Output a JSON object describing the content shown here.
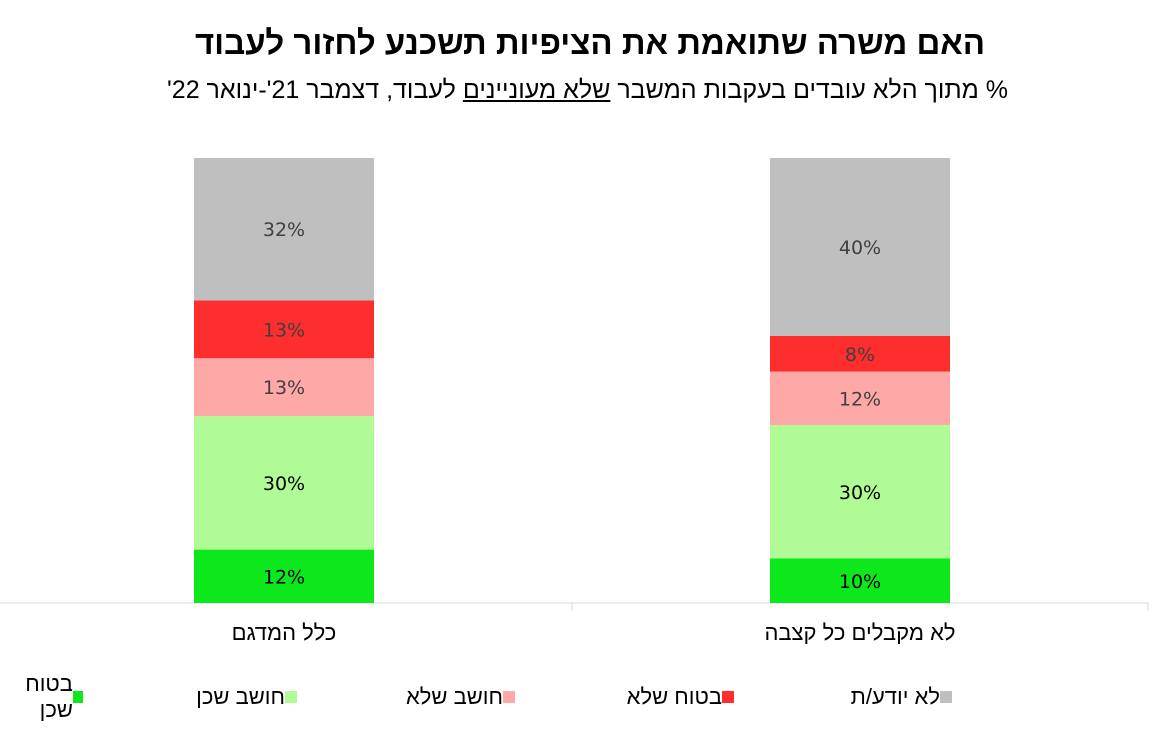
{
  "header": {
    "title": "האם משרה שתואמת את הציפיות תשכנע לחזור לעבוד",
    "subtitle_pre": "% מתוך הלא עובדים בעקבות המשבר ",
    "subtitle_underlined": "שלא מעוניינים",
    "subtitle_post": " לעבוד, דצמבר 21'-ינואר 22'"
  },
  "chart_data": {
    "type": "bar",
    "stacked": true,
    "value_format": "percent",
    "categories": [
      "לא מקבלים כל קצבה",
      "כלל המדגם"
    ],
    "series": [
      {
        "name": "בטוח שכן",
        "color": "#0ce81c",
        "values": [
          10,
          12
        ],
        "labels": [
          "10%",
          "12%"
        ]
      },
      {
        "name": "חושב שכן",
        "color": "#b0fb96",
        "values": [
          30,
          30
        ],
        "labels": [
          "30%",
          "30%"
        ]
      },
      {
        "name": "חושב שלא",
        "color": "#ffa8a8",
        "values": [
          12,
          13
        ],
        "labels": [
          "12%",
          "13%"
        ]
      },
      {
        "name": "בטוח שלא",
        "color": "#ff2e2e",
        "values": [
          8,
          13
        ],
        "labels": [
          "8%",
          "13%"
        ]
      },
      {
        "name": "לא יודע/ת",
        "color": "#bfbfbf",
        "values": [
          40,
          32
        ],
        "labels": [
          "40%",
          "32%"
        ]
      }
    ],
    "ylim": [
      0,
      100
    ],
    "grid": false,
    "legend_position": "bottom"
  }
}
